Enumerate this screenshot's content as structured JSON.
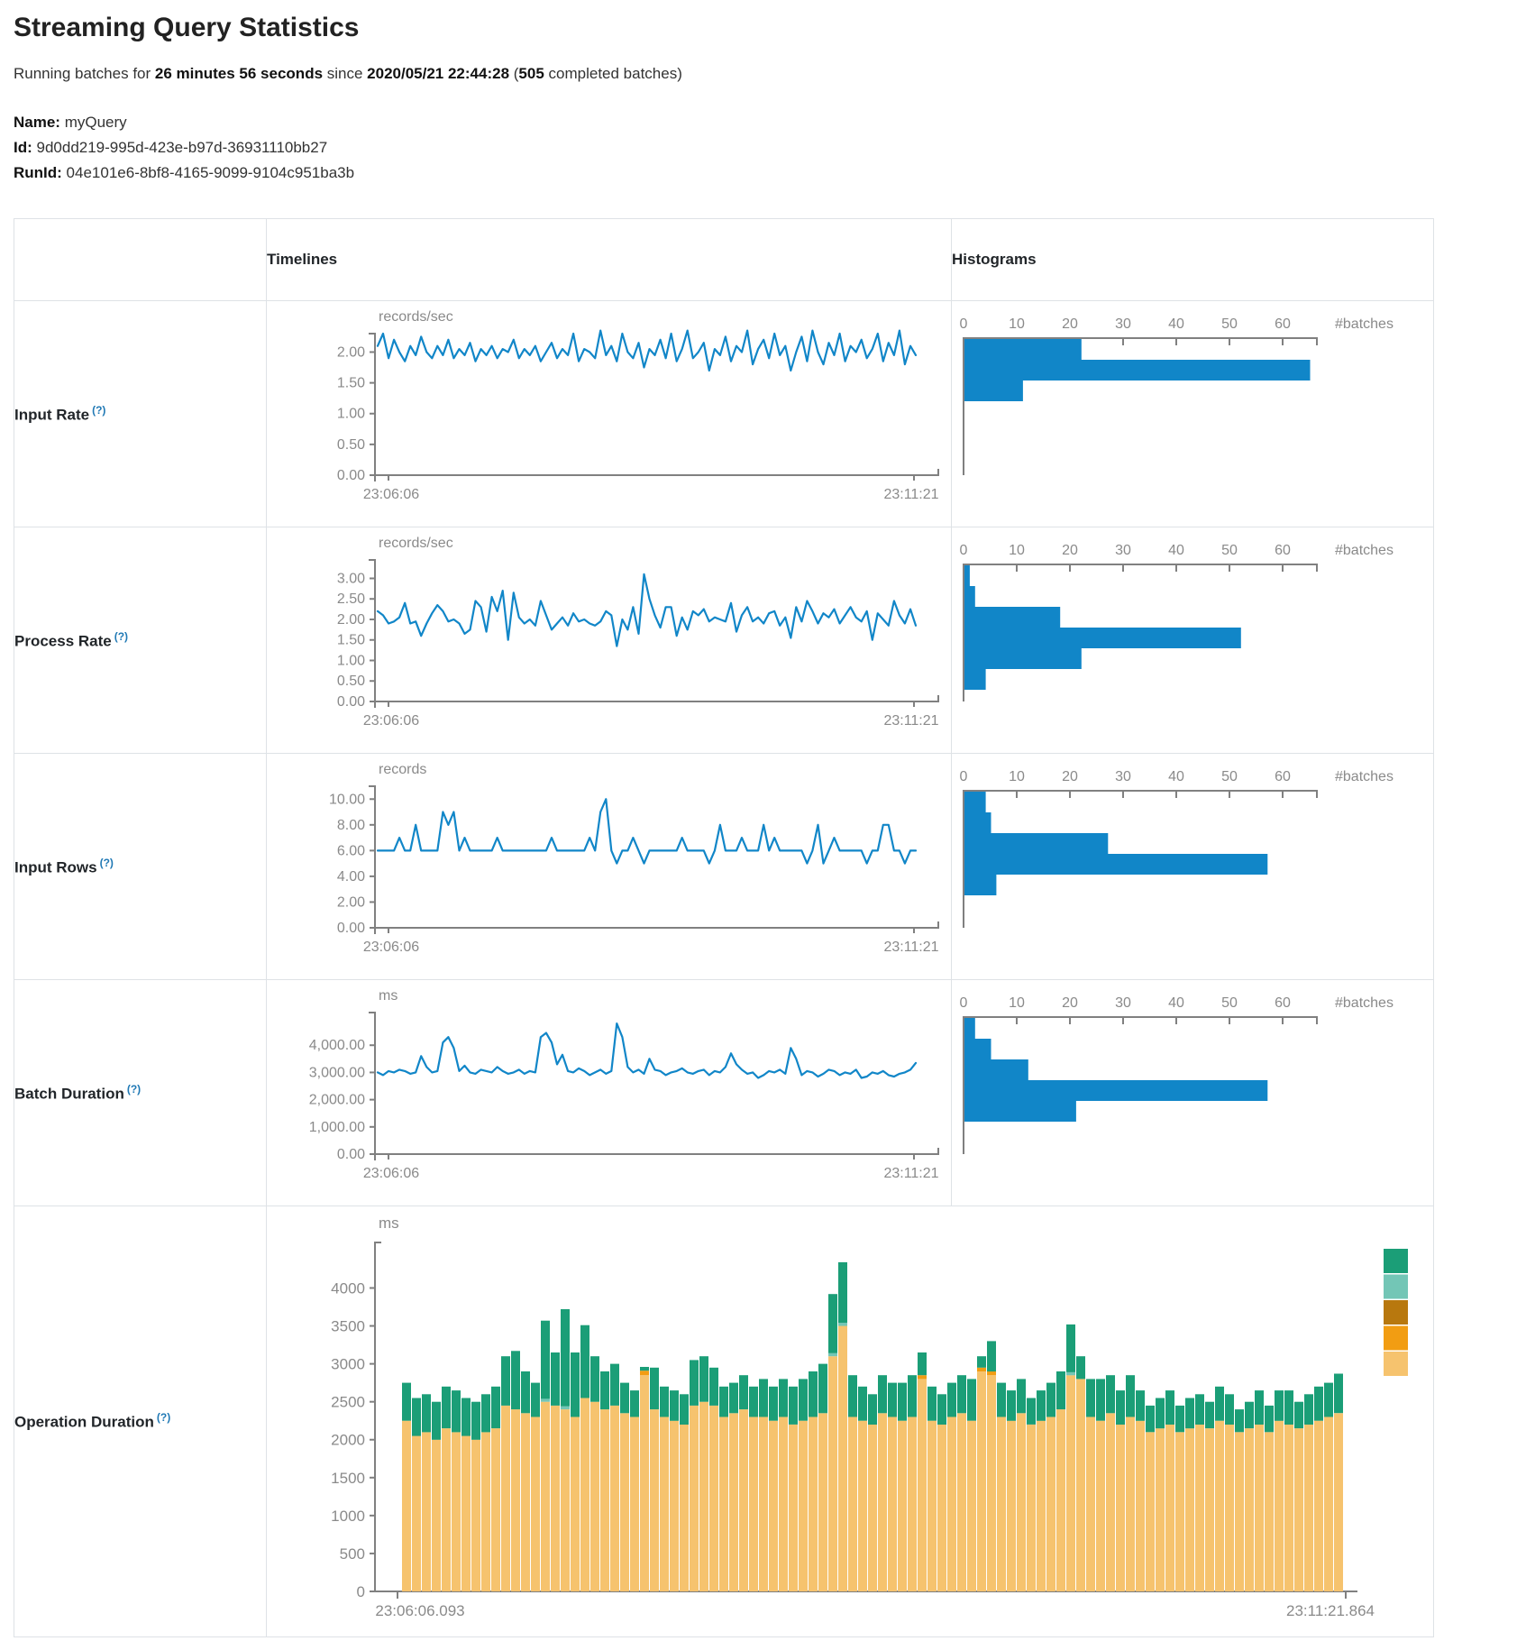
{
  "header": {
    "title": "Streaming Query Statistics",
    "running_prefix": "Running batches for ",
    "duration": "26 minutes 56 seconds",
    "since_word": " since ",
    "start_time": "2020/05/21 22:44:28",
    "paren_open": " (",
    "completed_count": "505",
    "completed_suffix": " completed batches)"
  },
  "meta": {
    "name_label": "Name:",
    "name_value": " myQuery",
    "id_label": "Id:",
    "id_value": " 9d0dd219-995d-423e-b97d-36931110bb27",
    "runid_label": "RunId:",
    "runid_value": " 04e101e6-8bf8-4165-9099-9104c951ba3b"
  },
  "table": {
    "col_timelines": "Timelines",
    "col_histograms": "Histograms",
    "help_marker": "(?)",
    "rows": [
      {
        "label": "Input Rate"
      },
      {
        "label": "Process Rate"
      },
      {
        "label": "Input Rows"
      },
      {
        "label": "Batch Duration"
      },
      {
        "label": "Operation Duration"
      }
    ]
  },
  "colors": {
    "line_blue": "#1186c8",
    "axis_gray": "#808080",
    "text_gray": "#8a8a8a",
    "help_blue": "#2079b5",
    "border": "#dee2e6"
  },
  "chart_data": {
    "timelines": [
      {
        "name": "Input Rate",
        "type": "line",
        "unit": "records/sec",
        "ytick_values": [
          0,
          0.5,
          1,
          1.5,
          2
        ],
        "ytick_labels": [
          "0.00",
          "0.50",
          "1.00",
          "1.50",
          "2.00"
        ],
        "ytop": 2.3,
        "x_start": "23:06:06",
        "x_end": "23:11:21",
        "values": [
          2.1,
          2.3,
          1.9,
          2.2,
          2.0,
          1.85,
          2.1,
          1.95,
          2.25,
          2.0,
          1.9,
          2.1,
          1.95,
          2.2,
          1.9,
          2.05,
          1.95,
          2.15,
          1.85,
          2.05,
          1.95,
          2.1,
          1.9,
          2.05,
          2.0,
          2.2,
          1.9,
          2.05,
          1.95,
          2.1,
          1.85,
          2.0,
          2.15,
          1.9,
          2.05,
          1.95,
          2.3,
          1.85,
          2.05,
          2.0,
          1.9,
          2.35,
          1.95,
          2.1,
          1.85,
          2.3,
          2.0,
          1.9,
          2.15,
          1.75,
          2.05,
          1.95,
          2.2,
          1.9,
          2.3,
          1.85,
          2.05,
          2.35,
          1.9,
          2.0,
          2.15,
          1.7,
          2.05,
          1.95,
          2.25,
          1.85,
          2.1,
          2.0,
          2.35,
          1.8,
          2.05,
          2.2,
          1.9,
          2.3,
          1.95,
          2.1,
          1.7,
          2.0,
          2.25,
          1.85,
          2.35,
          2.0,
          1.8,
          2.15,
          1.95,
          2.3,
          1.85,
          2.1,
          2.0,
          2.2,
          1.9,
          2.05,
          2.3,
          1.85,
          2.15,
          1.95,
          2.35,
          1.8,
          2.1,
          1.95
        ]
      },
      {
        "name": "Process Rate",
        "type": "line",
        "unit": "records/sec",
        "ytick_values": [
          0,
          0.5,
          1,
          1.5,
          2,
          2.5,
          3
        ],
        "ytick_labels": [
          "0.00",
          "0.50",
          "1.00",
          "1.50",
          "2.00",
          "2.50",
          "3.00"
        ],
        "ytop": 3.45,
        "x_start": "23:06:06",
        "x_end": "23:11:21",
        "values": [
          2.2,
          2.1,
          1.9,
          1.95,
          2.05,
          2.4,
          1.9,
          1.95,
          1.6,
          1.9,
          2.15,
          2.35,
          2.2,
          1.95,
          2.0,
          1.9,
          1.65,
          1.75,
          2.45,
          2.3,
          1.7,
          2.55,
          2.2,
          2.7,
          1.5,
          2.65,
          2.05,
          1.9,
          2.0,
          1.85,
          2.45,
          2.1,
          1.75,
          1.9,
          2.05,
          1.85,
          2.15,
          1.95,
          2.0,
          1.9,
          1.85,
          1.95,
          2.2,
          2.1,
          1.35,
          2.0,
          1.75,
          2.3,
          1.65,
          3.1,
          2.5,
          2.1,
          1.8,
          2.3,
          2.3,
          1.6,
          2.05,
          1.75,
          2.2,
          2.1,
          2.25,
          1.95,
          2.05,
          2.0,
          1.95,
          2.4,
          1.7,
          2.1,
          2.3,
          1.95,
          2.05,
          1.9,
          2.15,
          2.2,
          1.85,
          2.05,
          1.55,
          2.3,
          1.95,
          2.45,
          2.2,
          1.9,
          2.15,
          2.05,
          2.25,
          1.9,
          2.1,
          2.3,
          2.05,
          1.95,
          2.2,
          1.5,
          2.15,
          2.0,
          1.85,
          2.45,
          2.1,
          1.9,
          2.25,
          1.85
        ]
      },
      {
        "name": "Input Rows",
        "type": "line",
        "unit": "records",
        "ytick_values": [
          0,
          2,
          4,
          6,
          8,
          10
        ],
        "ytick_labels": [
          "0.00",
          "2.00",
          "4.00",
          "6.00",
          "8.00",
          "10.00"
        ],
        "ytop": 11.0,
        "x_start": "23:06:06",
        "x_end": "23:11:21",
        "values": [
          6,
          6,
          6,
          6,
          7,
          6,
          6,
          8,
          6,
          6,
          6,
          6,
          9,
          8,
          9,
          6,
          7,
          6,
          6,
          6,
          6,
          6,
          7,
          6,
          6,
          6,
          6,
          6,
          6,
          6,
          6,
          6,
          7,
          6,
          6,
          6,
          6,
          6,
          6,
          7,
          6,
          9,
          10,
          6,
          5,
          6,
          6,
          7,
          6,
          5,
          6,
          6,
          6,
          6,
          6,
          6,
          7,
          6,
          6,
          6,
          6,
          5,
          6,
          8,
          6,
          6,
          6,
          7,
          6,
          6,
          6,
          8,
          6,
          7,
          6,
          6,
          6,
          6,
          6,
          5,
          6,
          8,
          5,
          6,
          7,
          6,
          6,
          6,
          6,
          6,
          5,
          6,
          6,
          8,
          8,
          6,
          6,
          5,
          6,
          6
        ]
      },
      {
        "name": "Batch Duration",
        "type": "line",
        "unit": "ms",
        "ytick_values": [
          0,
          1000,
          2000,
          3000,
          4000
        ],
        "ytick_labels": [
          "0.00",
          "1,000.00",
          "2,000.00",
          "3,000.00",
          "4,000.00"
        ],
        "ytop": 5200,
        "x_start": "23:06:06",
        "x_end": "23:11:21",
        "values": [
          3000,
          2900,
          3050,
          3000,
          3100,
          3050,
          2950,
          3000,
          3600,
          3200,
          3000,
          3050,
          4100,
          4300,
          3900,
          3050,
          3250,
          3000,
          2950,
          3100,
          3050,
          3000,
          3200,
          3050,
          2950,
          3000,
          3100,
          2950,
          3050,
          3000,
          4300,
          4450,
          4100,
          3300,
          3650,
          3050,
          3000,
          3150,
          3050,
          2900,
          3000,
          3100,
          2950,
          3050,
          4800,
          4300,
          3200,
          3000,
          3100,
          2950,
          3500,
          3100,
          3050,
          2900,
          3000,
          3050,
          3150,
          3000,
          2950,
          3050,
          3100,
          2900,
          3050,
          3000,
          3200,
          3700,
          3300,
          3100,
          2950,
          3000,
          2800,
          2900,
          3050,
          3000,
          3100,
          2950,
          3900,
          3500,
          2900,
          3050,
          3000,
          2850,
          2950,
          3100,
          3050,
          2900,
          3000,
          2950,
          3100,
          2800,
          2850,
          3000,
          2950,
          3050,
          2900,
          2850,
          2950,
          3000,
          3100,
          3350
        ]
      }
    ],
    "histograms": [
      {
        "name": "Input Rate",
        "type": "bar",
        "xtick_values": [
          0,
          10,
          20,
          30,
          40,
          50,
          60
        ],
        "xlabel": "#batches",
        "values": [
          22,
          65,
          11
        ]
      },
      {
        "name": "Process Rate",
        "type": "bar",
        "xtick_values": [
          0,
          10,
          20,
          30,
          40,
          50,
          60
        ],
        "xlabel": "#batches",
        "values": [
          1,
          2,
          18,
          52,
          22,
          4
        ]
      },
      {
        "name": "Input Rows",
        "type": "bar",
        "xtick_values": [
          0,
          10,
          20,
          30,
          40,
          50,
          60
        ],
        "xlabel": "#batches",
        "values": [
          4,
          5,
          27,
          57,
          6
        ]
      },
      {
        "name": "Batch Duration",
        "type": "bar",
        "xtick_values": [
          0,
          10,
          20,
          30,
          40,
          50,
          60
        ],
        "xlabel": "#batches",
        "values": [
          2,
          5,
          12,
          57,
          21
        ]
      }
    ],
    "operation_duration": {
      "name": "Operation Duration",
      "type": "stacked-bar",
      "unit": "ms",
      "ytick_values": [
        0,
        500,
        1000,
        1500,
        2000,
        2500,
        3000,
        3500,
        4000
      ],
      "ytick_labels": [
        "0",
        "500",
        "1000",
        "1500",
        "2000",
        "2500",
        "3000",
        "3500",
        "4000"
      ],
      "ytop": 4600,
      "x_start": "23:06:06.093",
      "x_end": "23:11:21.864",
      "legend_colors": [
        "#1b9e77",
        "#73c6b6",
        "#b8780e",
        "#f29d12",
        "#f6c36e"
      ],
      "series": [
        {
          "color": "#f6c36e",
          "values": [
            2250,
            2050,
            2100,
            2000,
            2150,
            2100,
            2050,
            2000,
            2100,
            2150,
            2450,
            2400,
            2350,
            2300,
            2500,
            2450,
            2400,
            2300,
            2550,
            2500,
            2400,
            2450,
            2350,
            2300,
            2850,
            2400,
            2300,
            2250,
            2200,
            2450,
            2500,
            2450,
            2300,
            2350,
            2400,
            2300,
            2300,
            2250,
            2300,
            2200,
            2250,
            2300,
            2350,
            3100,
            3500,
            2300,
            2250,
            2200,
            2350,
            2300,
            2250,
            2300,
            2800,
            2250,
            2200,
            2300,
            2350,
            2250,
            2900,
            2850,
            2300,
            2250,
            2350,
            2200,
            2250,
            2300,
            2400,
            2850,
            2800,
            2300,
            2250,
            2350,
            2200,
            2300,
            2250,
            2100,
            2150,
            2200,
            2100,
            2150,
            2200,
            2150,
            2250,
            2200,
            2100,
            2150,
            2200,
            2100,
            2250,
            2200,
            2150,
            2200,
            2250,
            2300,
            2350
          ]
        },
        {
          "color": "#f29d12",
          "values": [
            0,
            0,
            0,
            0,
            0,
            0,
            0,
            0,
            0,
            0,
            0,
            0,
            0,
            0,
            0,
            0,
            0,
            0,
            0,
            0,
            0,
            0,
            0,
            0,
            60,
            0,
            0,
            0,
            0,
            0,
            0,
            0,
            0,
            0,
            0,
            0,
            0,
            0,
            0,
            0,
            0,
            0,
            0,
            0,
            0,
            0,
            0,
            0,
            0,
            0,
            0,
            0,
            50,
            0,
            0,
            0,
            0,
            0,
            50,
            50,
            0,
            0,
            0,
            0,
            0,
            0,
            0,
            0,
            0,
            0,
            0,
            0,
            0,
            0,
            0,
            0,
            0,
            0,
            0,
            0,
            0,
            0,
            0,
            0,
            0,
            0,
            0,
            0,
            0,
            0,
            0,
            0,
            0,
            0,
            0
          ]
        },
        {
          "color": "#b8780e",
          "values": [
            0,
            0,
            0,
            0,
            0,
            0,
            0,
            0,
            0,
            0,
            0,
            0,
            0,
            0,
            0,
            0,
            0,
            0,
            0,
            0,
            0,
            0,
            0,
            0,
            0,
            0,
            0,
            0,
            0,
            0,
            0,
            0,
            0,
            0,
            0,
            0,
            0,
            0,
            0,
            0,
            0,
            0,
            0,
            0,
            0,
            0,
            0,
            0,
            0,
            0,
            0,
            0,
            0,
            0,
            0,
            0,
            0,
            0,
            0,
            0,
            0,
            0,
            0,
            0,
            0,
            0,
            0,
            0,
            0,
            0,
            0,
            0,
            0,
            0,
            0,
            0,
            0,
            0,
            0,
            0,
            0,
            0,
            0,
            0,
            0,
            0,
            0,
            0,
            0,
            0,
            0,
            0,
            0,
            0,
            0
          ]
        },
        {
          "color": "#73c6b6",
          "values": [
            0,
            0,
            0,
            0,
            0,
            0,
            0,
            0,
            0,
            0,
            0,
            0,
            0,
            0,
            40,
            0,
            40,
            0,
            0,
            0,
            0,
            0,
            0,
            0,
            0,
            0,
            0,
            0,
            0,
            0,
            0,
            0,
            0,
            0,
            0,
            0,
            0,
            0,
            0,
            0,
            0,
            0,
            0,
            40,
            40,
            0,
            0,
            0,
            0,
            0,
            0,
            0,
            0,
            0,
            0,
            0,
            0,
            0,
            0,
            0,
            0,
            0,
            0,
            0,
            0,
            0,
            0,
            40,
            0,
            0,
            0,
            0,
            0,
            0,
            0,
            0,
            0,
            0,
            0,
            0,
            0,
            0,
            0,
            0,
            0,
            0,
            0,
            0,
            0,
            0,
            0,
            0,
            0,
            0,
            0
          ]
        },
        {
          "color": "#1b9e77",
          "values": [
            500,
            500,
            500,
            500,
            550,
            550,
            500,
            500,
            500,
            550,
            650,
            770,
            550,
            450,
            1030,
            700,
            1280,
            850,
            960,
            600,
            500,
            550,
            400,
            350,
            50,
            550,
            400,
            400,
            400,
            600,
            600,
            500,
            400,
            400,
            450,
            400,
            500,
            450,
            500,
            500,
            550,
            600,
            650,
            780,
            800,
            550,
            450,
            400,
            500,
            450,
            500,
            550,
            300,
            450,
            400,
            450,
            500,
            550,
            150,
            400,
            450,
            400,
            450,
            350,
            400,
            450,
            500,
            630,
            300,
            500,
            550,
            500,
            450,
            550,
            400,
            350,
            400,
            450,
            350,
            400,
            400,
            350,
            450,
            400,
            300,
            350,
            450,
            350,
            400,
            450,
            350,
            400,
            450,
            450,
            520
          ]
        }
      ]
    }
  }
}
